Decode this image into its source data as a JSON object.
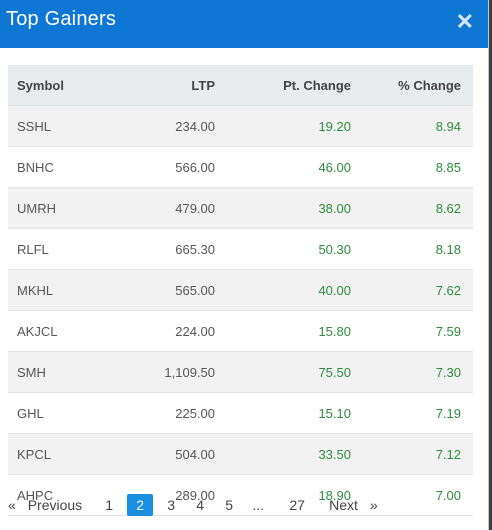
{
  "modal": {
    "title": "Top Gainers",
    "close_icon": "close-icon",
    "accent": "#0e76d3"
  },
  "table": {
    "headers": [
      "Symbol",
      "LTP",
      "Pt. Change",
      "% Change"
    ],
    "rows": [
      {
        "symbol": "SSHL",
        "ltp": "234.00",
        "pt_change": "19.20",
        "pct_change": "8.94"
      },
      {
        "symbol": "BNHC",
        "ltp": "566.00",
        "pt_change": "46.00",
        "pct_change": "8.85"
      },
      {
        "symbol": "UMRH",
        "ltp": "479.00",
        "pt_change": "38.00",
        "pct_change": "8.62"
      },
      {
        "symbol": "RLFL",
        "ltp": "665.30",
        "pt_change": "50.30",
        "pct_change": "8.18"
      },
      {
        "symbol": "MKHL",
        "ltp": "565.00",
        "pt_change": "40.00",
        "pct_change": "7.62"
      },
      {
        "symbol": "AKJCL",
        "ltp": "224.00",
        "pt_change": "15.80",
        "pct_change": "7.59"
      },
      {
        "symbol": "SMH",
        "ltp": "1,109.50",
        "pt_change": "75.50",
        "pct_change": "7.30"
      },
      {
        "symbol": "GHL",
        "ltp": "225.00",
        "pt_change": "15.10",
        "pct_change": "7.19"
      },
      {
        "symbol": "KPCL",
        "ltp": "504.00",
        "pt_change": "33.50",
        "pct_change": "7.12"
      },
      {
        "symbol": "AHPC",
        "ltp": "289.00",
        "pt_change": "18.90",
        "pct_change": "7.00"
      }
    ],
    "positive_color": "#2e8b3d"
  },
  "pagination": {
    "prev_glyph": "«",
    "prev_label": "Previous",
    "pages": [
      "1",
      "2",
      "3",
      "4",
      "5",
      "...",
      "27"
    ],
    "active_page": "2",
    "next_label": "Next",
    "next_glyph": "»"
  }
}
